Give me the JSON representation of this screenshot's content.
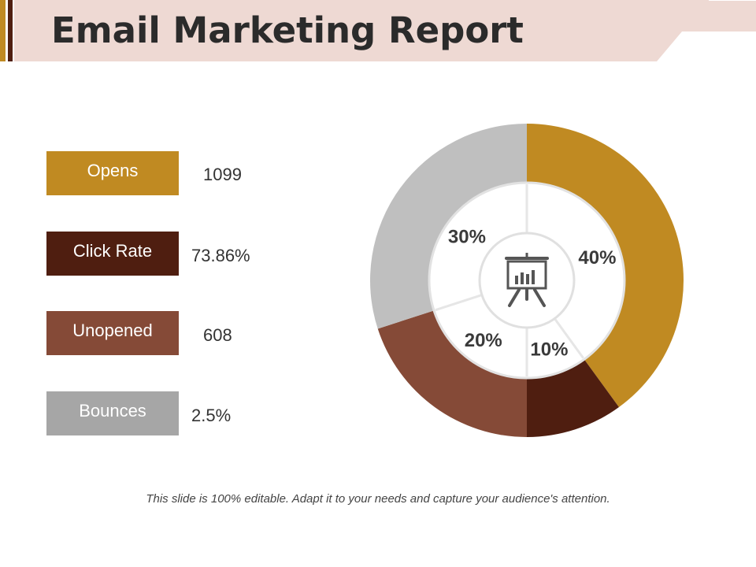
{
  "page": {
    "title": "Email Marketing Report"
  },
  "colors": {
    "header_bg": "#EED9D3",
    "gold": "#C08A22",
    "dark_brown": "#4F1E10",
    "brown": "#854A37",
    "gray": "#A6A6A6",
    "light_gray": "#BFBFBF"
  },
  "metrics": [
    {
      "label": "Opens",
      "value": "1099",
      "color": "#C08A22"
    },
    {
      "label": "Click Rate",
      "value": "73.86%",
      "color": "#4F1E10"
    },
    {
      "label": "Unopened",
      "value": "608",
      "color": "#854A37"
    },
    {
      "label": "Bounces",
      "value": "2.5%",
      "color": "#A6A6A6"
    }
  ],
  "chart_data": {
    "type": "pie",
    "variant": "donut",
    "series": [
      {
        "name": "gold",
        "value": 40,
        "label": "40%",
        "color": "#C08A22"
      },
      {
        "name": "dark-brown",
        "value": 10,
        "label": "10%",
        "color": "#4F1E10"
      },
      {
        "name": "brown",
        "value": 20,
        "label": "20%",
        "color": "#854A37"
      },
      {
        "name": "gray",
        "value": 30,
        "label": "30%",
        "color": "#BFBFBF"
      }
    ],
    "center_icon": "presentation-board-icon"
  },
  "footer": {
    "note": "This slide is 100% editable. Adapt it to your needs and capture your audience's attention."
  }
}
